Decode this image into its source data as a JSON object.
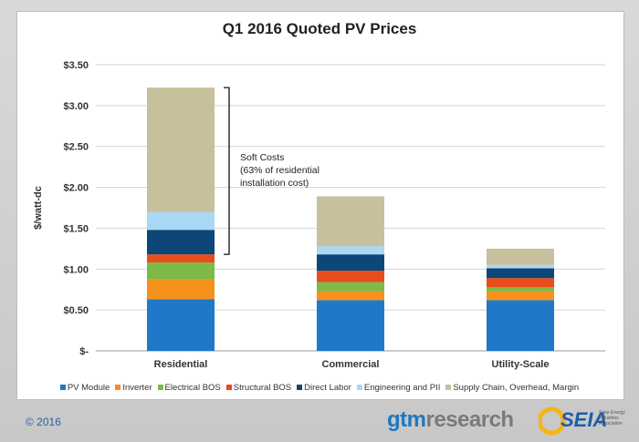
{
  "branding": {
    "copyright": "© 2016",
    "gtm_logo_main": "gtm",
    "gtm_logo_accent": "research",
    "seia_logo": "SEIA",
    "seia_sub": "Solar Energy Industries Association"
  },
  "annotation": {
    "line1": "Soft Costs",
    "line2": "(63% of residential",
    "line3": "installation cost)"
  },
  "colors": {
    "PV Module": "#1f78c8",
    "Inverter": "#f5921e",
    "Electrical BOS": "#7cba4a",
    "Structural BOS": "#e84e1b",
    "Direct Labor": "#0d4778",
    "Engineering and PII": "#a9d8f5",
    "Supply Chain, Overhead, Margin": "#c7c09c"
  },
  "chart_data": {
    "type": "bar",
    "stacked": true,
    "title": "Q1 2016 Quoted PV Prices",
    "xlabel": "",
    "ylabel": "$/watt-dc",
    "ylim": [
      0,
      3.5
    ],
    "yticks": [
      0,
      0.5,
      1.0,
      1.5,
      2.0,
      2.5,
      3.0,
      3.5
    ],
    "ytick_labels": [
      "$-",
      "$0.50",
      "$1.00",
      "$1.50",
      "$2.00",
      "$2.50",
      "$3.00",
      "$3.50"
    ],
    "grid": true,
    "legend_position": "bottom",
    "categories": [
      "Residential",
      "Commercial",
      "Utility-Scale"
    ],
    "series": [
      {
        "name": "PV Module",
        "values": [
          0.63,
          0.62,
          0.62
        ]
      },
      {
        "name": "Inverter",
        "values": [
          0.25,
          0.11,
          0.11
        ]
      },
      {
        "name": "Electrical BOS",
        "values": [
          0.2,
          0.11,
          0.05
        ]
      },
      {
        "name": "Structural BOS",
        "values": [
          0.1,
          0.14,
          0.11
        ]
      },
      {
        "name": "Direct Labor",
        "values": [
          0.3,
          0.2,
          0.12
        ]
      },
      {
        "name": "Engineering and PII",
        "values": [
          0.22,
          0.1,
          0.04
        ]
      },
      {
        "name": "Supply Chain, Overhead, Margin",
        "values": [
          1.52,
          0.61,
          0.2
        ]
      }
    ]
  }
}
